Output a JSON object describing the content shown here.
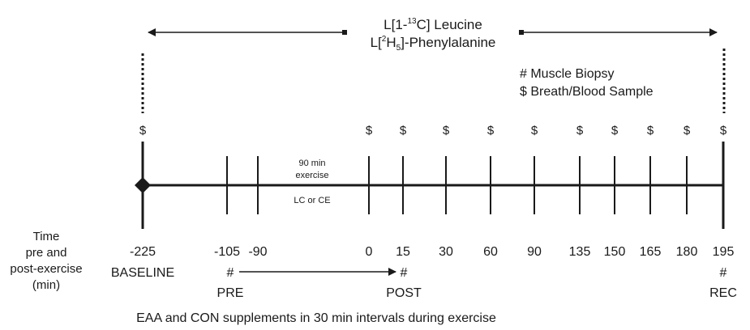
{
  "tracer": {
    "leucine": {
      "pre": "L[1-",
      "sup": "13",
      "post": "C] Leucine"
    },
    "phenylalanine": {
      "pre": "L[",
      "sup": "2",
      "mid": "H",
      "sub": "5",
      "post": "]-Phenylalanine"
    }
  },
  "legend": {
    "biopsy": "# Muscle Biopsy",
    "sample": "$ Breath/Blood Sample"
  },
  "exercise": {
    "duration_line1": "90 min",
    "duration_line2": "exercise",
    "condition": "LC or CE"
  },
  "axis_label": [
    "Time",
    "pre and",
    "post-exercise",
    "(min)"
  ],
  "time_labels": [
    "-225",
    "-105",
    "-90",
    "0",
    "15",
    "30",
    "60",
    "90",
    "135",
    "150",
    "165",
    "180",
    "195"
  ],
  "sample_symbol": "$",
  "biopsy_symbol": "#",
  "phases": {
    "baseline": "BASELINE",
    "pre": "PRE",
    "post": "POST",
    "rec": "REC"
  },
  "footnote": "EAA and CON supplements in 30 min intervals during exercise",
  "colors": {
    "ink": "#1a1a1a",
    "background": "#ffffff"
  }
}
